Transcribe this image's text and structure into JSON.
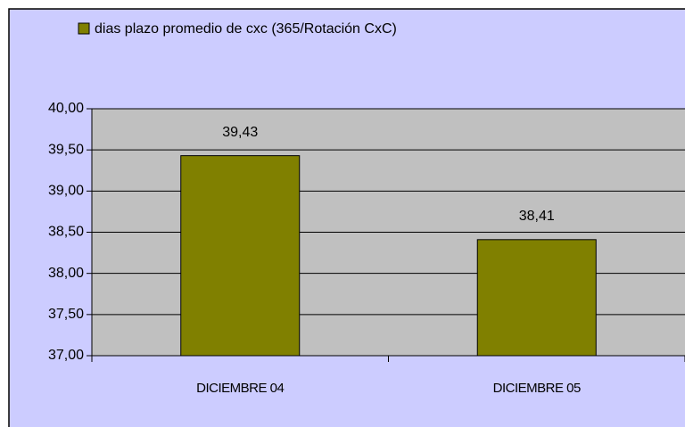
{
  "chart_data": {
    "type": "bar",
    "categories": [
      "DICIEMBRE 04",
      "DICIEMBRE 05"
    ],
    "series": [
      {
        "name": "dias plazo promedio de cxc (365/Rotación CxC)",
        "color": "#808000",
        "values": [
          39.43,
          38.41
        ],
        "value_labels": [
          "39,43",
          "38,41"
        ]
      }
    ],
    "ylim": [
      37,
      40
    ],
    "yticks": [
      {
        "value": 37,
        "label": "37,00"
      },
      {
        "value": 37.5,
        "label": "37,50"
      },
      {
        "value": 38,
        "label": "38,00"
      },
      {
        "value": 38.5,
        "label": "38,50"
      },
      {
        "value": 39,
        "label": "39,00"
      },
      {
        "value": 39.5,
        "label": "39,50"
      },
      {
        "value": 40,
        "label": "40,00"
      }
    ],
    "grid": true,
    "legend": "top"
  }
}
